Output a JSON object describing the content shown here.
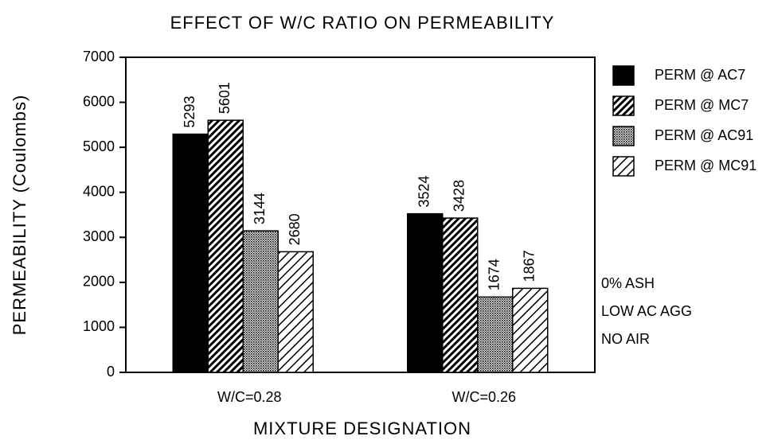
{
  "chart_data": {
    "type": "bar",
    "title": "EFFECT OF W/C RATIO ON PERMEABILITY",
    "x_label": "MIXTURE DESIGNATION",
    "y_label": "PERMEABILITY  (Coulombs)",
    "categories": [
      "W/C=0.28",
      "W/C=0.26"
    ],
    "series": [
      {
        "name": "PERM @ AC7",
        "color": "#000000",
        "pattern": "solid",
        "values": [
          5293,
          3524
        ]
      },
      {
        "name": "PERM @ MC7",
        "color": "#000000",
        "pattern": "dense-hatch",
        "values": [
          5601,
          3428
        ]
      },
      {
        "name": "PERM @ AC91",
        "color": "#000000",
        "pattern": "dots",
        "values": [
          3144,
          1674
        ]
      },
      {
        "name": "PERM @ MC91",
        "color": "#000000",
        "pattern": "light-hatch",
        "values": [
          2680,
          1867
        ]
      }
    ],
    "ylim": [
      0,
      7000
    ],
    "yticks": [
      0,
      1000,
      2000,
      3000,
      4000,
      5000,
      6000,
      7000
    ],
    "annotations": [
      "0% ASH",
      "LOW AC AGG",
      "NO AIR"
    ],
    "legend": "right"
  }
}
